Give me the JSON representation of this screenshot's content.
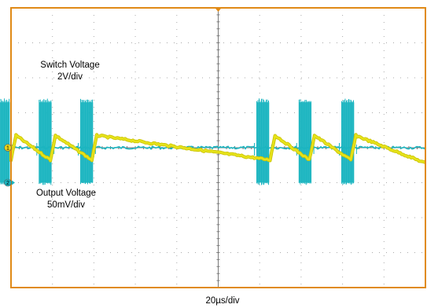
{
  "chart_data": {
    "type": "line",
    "title": "",
    "grid": true,
    "time_scale": "20µs/div",
    "x_divisions": 10,
    "y_divisions": 8,
    "colors": {
      "frame": "#e08a16",
      "grid": "#a9a9a9",
      "switch": "#1bb5c0",
      "output": "#e6e21a",
      "marker_switch": "#1bb5c0",
      "marker_output": "#e8d21a"
    },
    "series": [
      {
        "name": "Switch Voltage",
        "scale": "2V/div",
        "channel": "2",
        "ground_div": -1,
        "baseline_div": 0,
        "pulse_high_div": 1.3,
        "pulse_width_div": 0.3,
        "pulse_start_divs": [
          -5.33,
          -4.32,
          -3.32,
          0.93,
          1.95,
          2.98
        ]
      },
      {
        "name": "Output Voltage",
        "scale": "50mV/div",
        "channel": "1",
        "ground_div": 0,
        "ripple_low_div": -0.35,
        "ripple_high_div": 0.35,
        "rise_times_div": [
          -5.0,
          -4.05,
          -3.05,
          1.25,
          2.2,
          3.2
        ]
      }
    ],
    "labels": {
      "switch_name": "Switch Voltage",
      "switch_scale": "2V/div",
      "output_name": "Output Voltage",
      "output_scale": "50mV/div",
      "time_scale": "20µs/div"
    },
    "markers": {
      "switch_channel": "2",
      "output_channel": "1"
    }
  }
}
